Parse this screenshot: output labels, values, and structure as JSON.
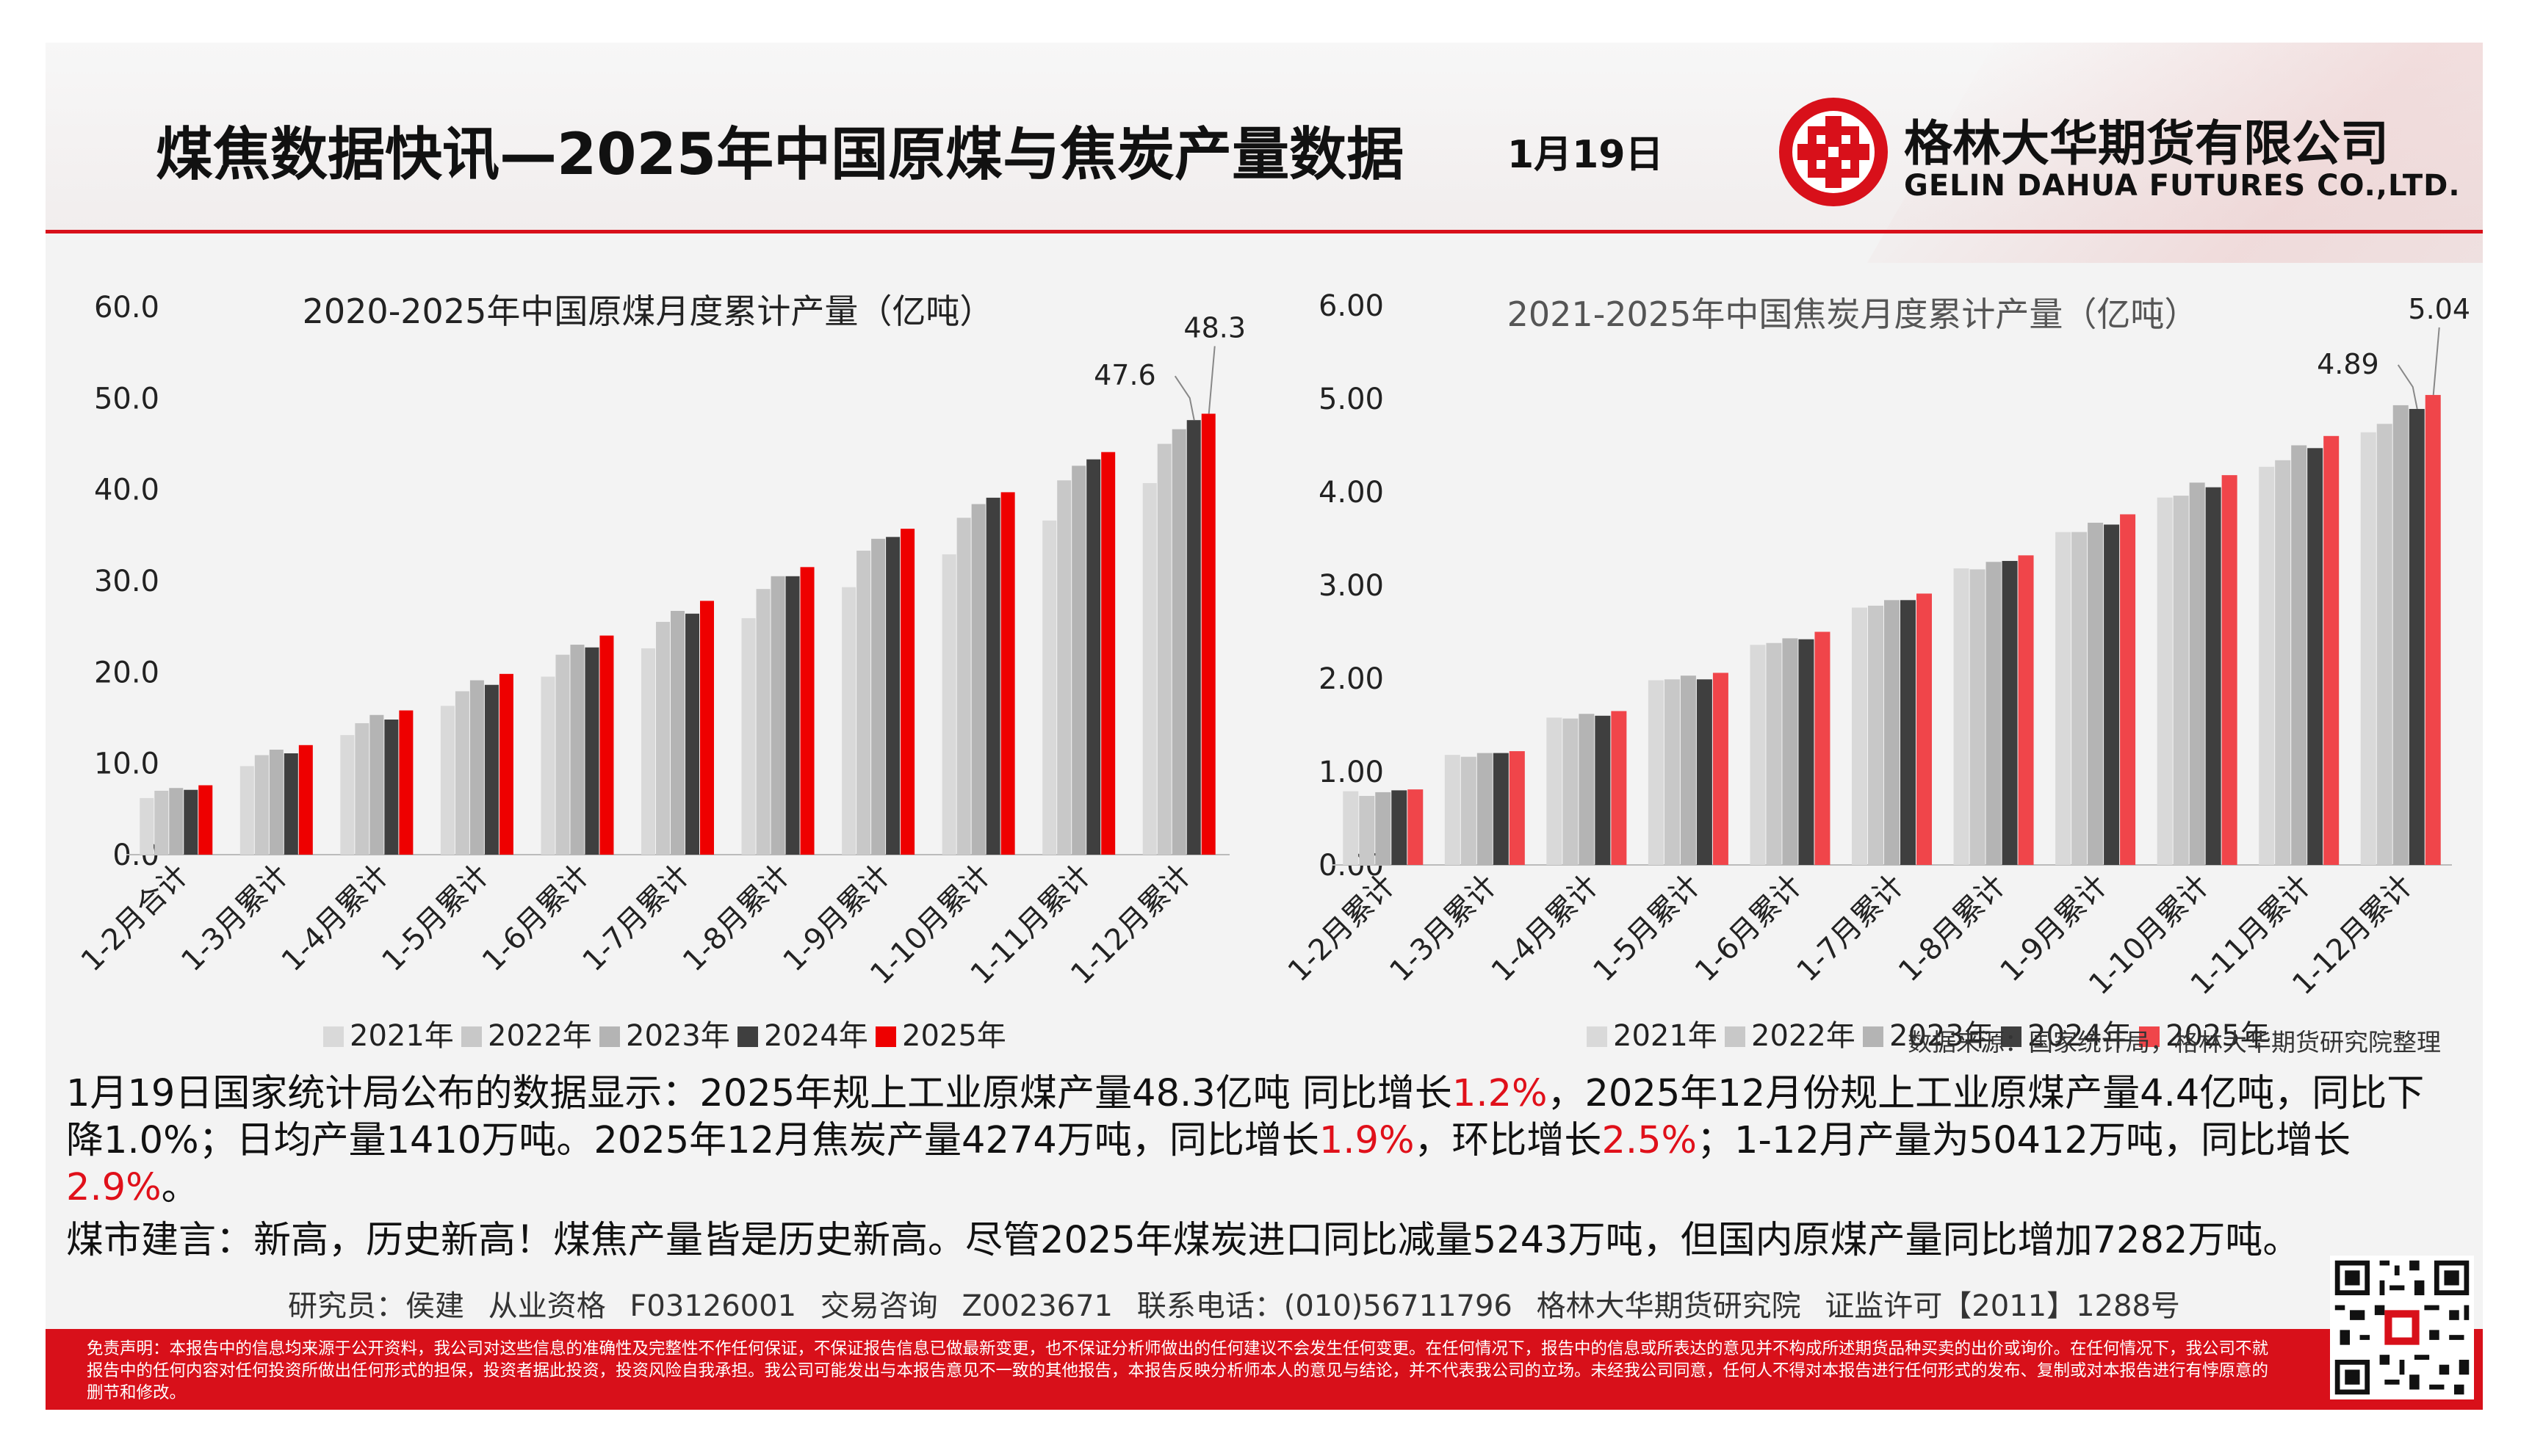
{
  "header": {
    "title": "煤焦数据快讯—2025年中国原煤与焦炭产量数据",
    "date": "1月19日",
    "company_cn": "格林大华期货有限公司",
    "company_en": "GELIN DAHUA FUTURES CO.,LTD."
  },
  "colors": {
    "accent": "#d8101a",
    "s2021": "#d9d9d9",
    "s2022": "#c8c8c8",
    "s2023": "#b4b4b4",
    "s2024": "#3f3f3f",
    "s2025_left": "#ee0000",
    "s2025_right": "#f0454a"
  },
  "chart_data": [
    {
      "type": "bar",
      "title": "2020-2025年中国原煤月度累计产量（亿吨）",
      "categories": [
        "1-2月合计",
        "1-3月累计",
        "1-4月累计",
        "1-5月累计",
        "1-6月累计",
        "1-7月累计",
        "1-8月累计",
        "1-9月累计",
        "1-10月累计",
        "1-11月累计",
        "1-12月累计"
      ],
      "ylim": [
        0,
        60
      ],
      "yticks": [
        "0.0",
        "10.0",
        "20.0",
        "30.0",
        "40.0",
        "50.0",
        "60.0"
      ],
      "series": [
        {
          "name": "2021年",
          "values": [
            6.2,
            9.7,
            13.1,
            16.3,
            19.5,
            22.6,
            25.9,
            29.3,
            32.9,
            36.6,
            40.7
          ]
        },
        {
          "name": "2022年",
          "values": [
            7.0,
            10.9,
            14.4,
            17.9,
            21.9,
            25.5,
            29.1,
            33.3,
            36.9,
            41.0,
            45.0
          ]
        },
        {
          "name": "2023年",
          "values": [
            7.3,
            11.5,
            15.3,
            19.1,
            23.0,
            26.7,
            30.5,
            34.6,
            38.4,
            42.6,
            46.6
          ]
        },
        {
          "name": "2024年",
          "values": [
            7.1,
            11.1,
            14.8,
            18.6,
            22.7,
            26.4,
            30.5,
            34.8,
            39.1,
            43.3,
            47.6
          ]
        },
        {
          "name": "2025年",
          "values": [
            7.6,
            12.0,
            15.8,
            19.8,
            24.0,
            27.8,
            31.5,
            35.7,
            39.7,
            44.1,
            48.3
          ]
        }
      ],
      "data_labels": [
        "47.6",
        "48.3"
      ],
      "legend": "bottom"
    },
    {
      "type": "bar",
      "title": "2021-2025年中国焦炭月度累计产量（亿吨）",
      "categories": [
        "1-2月累计",
        "1-3月累计",
        "1-4月累计",
        "1-5月累计",
        "1-6月累计",
        "1-7月累计",
        "1-8月累计",
        "1-9月累计",
        "1-10月累计",
        "1-11月累计",
        "1-12月累计"
      ],
      "ylim": [
        0,
        6
      ],
      "yticks": [
        "0.00",
        "1.00",
        "2.00",
        "3.00",
        "4.00",
        "5.00",
        "6.00"
      ],
      "series": [
        {
          "name": "2021年",
          "values": [
            0.79,
            1.18,
            1.58,
            1.98,
            2.36,
            2.76,
            3.18,
            3.57,
            3.94,
            4.27,
            4.64
          ]
        },
        {
          "name": "2022年",
          "values": [
            0.74,
            1.16,
            1.57,
            1.99,
            2.38,
            2.78,
            3.17,
            3.57,
            3.96,
            4.34,
            4.73
          ]
        },
        {
          "name": "2023年",
          "values": [
            0.78,
            1.2,
            1.62,
            2.03,
            2.43,
            2.84,
            3.25,
            3.67,
            4.1,
            4.5,
            4.93
          ]
        },
        {
          "name": "2024年",
          "values": [
            0.8,
            1.2,
            1.6,
            1.99,
            2.42,
            2.84,
            3.26,
            3.65,
            4.05,
            4.47,
            4.89
          ]
        },
        {
          "name": "2025年",
          "values": [
            0.81,
            1.22,
            1.65,
            2.06,
            2.5,
            2.91,
            3.32,
            3.76,
            4.18,
            4.6,
            5.04
          ]
        }
      ],
      "data_labels": [
        "4.89",
        "5.04"
      ],
      "legend": "bottom"
    }
  ],
  "source": "数据来源：国家统计局，格林大华期货研究院整理",
  "paragraphs": {
    "p1_a": "1月19日国家统计局公布的数据显示：2025年规上工业原煤产量48.3亿吨 同比增长",
    "p1_b": "1.2%",
    "p1_c": "，2025年12月份规上工业原煤产量4.4亿吨，同比下降1.0%；日均产量1410万吨。2025年12月焦炭产量4274万吨，同比增长",
    "p1_d": "1.9%",
    "p1_e": "，环比增长",
    "p1_f": "2.5%",
    "p1_g": "；1-12月产量为50412万吨，同比增长",
    "p1_h": "2.9%",
    "p1_i": "。",
    "p2": "煤市建言：新高，历史新高！煤焦产量皆是历史新高。尽管2025年煤炭进口同比减量5243万吨，但国内原煤产量同比增加7282万吨。"
  },
  "analyst_line": "研究员：侯建   从业资格 F03126001   交易咨询 Z0023671   联系电话：(010)56711796   格林大华期货研究院  证监许可【2011】1288号",
  "disclaimer": "免责声明：本报告中的信息均来源于公开资料，我公司对这些信息的准确性及完整性不作任何保证，不保证报告信息已做最新变更，也不保证分析师做出的任何建议不会发生任何变更。在任何情况下，报告中的信息或所表达的意见并不构成所述期货品种买卖的出价或询价。在任何情况下，我公司不就报告中的任何内容对任何投资所做出任何形式的担保，投资者据此投资，投资风险自我承担。我公司可能发出与本报告意见不一致的其他报告，本报告反映分析师本人的意见与结论，并不代表我公司的立场。未经我公司同意，任何人不得对本报告进行任何形式的发布、复制或对本报告进行有悖原意的删节和修改。"
}
